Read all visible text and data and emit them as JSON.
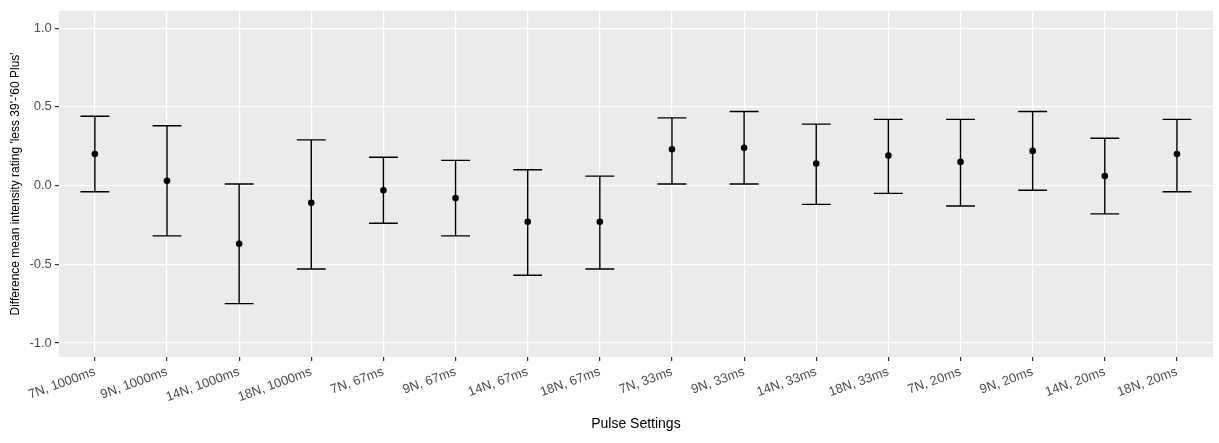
{
  "chart_data": {
    "type": "scatter",
    "xlabel": "Pulse Settings",
    "ylabel": "Difference mean intensity rating 'less 39'-'60 Plus'",
    "categories": [
      "7N, 1000ms",
      "9N, 1000ms",
      "14N, 1000ms",
      "18N, 1000ms",
      "7N, 67ms",
      "9N, 67ms",
      "14N, 67ms",
      "18N, 67ms",
      "7N, 33ms",
      "9N, 33ms",
      "14N, 33ms",
      "18N, 33ms",
      "7N, 20ms",
      "9N, 20ms",
      "14N, 20ms",
      "18N, 20ms"
    ],
    "series": [
      {
        "color": "#000000",
        "values": [
          0.2,
          0.03,
          -0.37,
          -0.11,
          -0.03,
          -0.08,
          -0.23,
          -0.23,
          0.23,
          0.24,
          0.14,
          0.19,
          0.15,
          0.22,
          0.06,
          0.2
        ],
        "errors": [
          [
            -0.04,
            0.44
          ],
          [
            -0.32,
            0.38
          ],
          [
            -0.75,
            0.01
          ],
          [
            -0.53,
            0.29
          ],
          [
            -0.24,
            0.18
          ],
          [
            -0.32,
            0.16
          ],
          [
            -0.57,
            0.1
          ],
          [
            -0.53,
            0.06
          ],
          [
            0.01,
            0.43
          ],
          [
            0.01,
            0.47
          ],
          [
            -0.12,
            0.39
          ],
          [
            -0.05,
            0.42
          ],
          [
            -0.13,
            0.42
          ],
          [
            -0.03,
            0.47
          ],
          [
            -0.18,
            0.3
          ],
          [
            -0.04,
            0.42
          ]
        ]
      }
    ],
    "ylim": [
      -1.09,
      1.11
    ],
    "yticks": [
      {
        "value": -1,
        "label": "-1.0"
      },
      {
        "value": -0.5,
        "label": "-0.5"
      },
      {
        "value": 0,
        "label": "0.0"
      },
      {
        "value": 0.5,
        "label": "0.5"
      },
      {
        "value": 1,
        "label": "1.0"
      }
    ],
    "grid": true,
    "legend": false,
    "marker": "circle"
  }
}
